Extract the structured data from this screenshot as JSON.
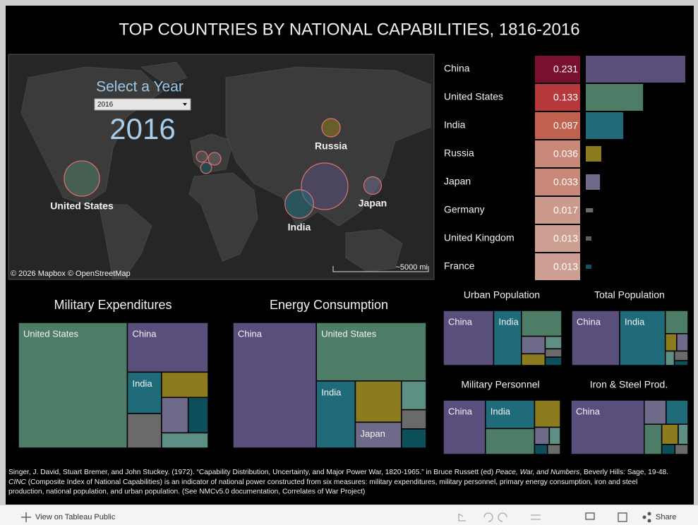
{
  "header": {
    "title": "TOP COUNTRIES BY NATIONAL CAPABILITIES, 1816-2016"
  },
  "map": {
    "prompt": "Select a Year",
    "dropdown": "2016",
    "year": "2016",
    "labels": [
      "United States",
      "Russia",
      "India",
      "Japan"
    ],
    "attribution": "© 2026 Mapbox  © OpenStreetMap",
    "scale": "~5000 mi"
  },
  "chart_data": [
    {
      "type": "bar",
      "categories": [
        "China",
        "United States",
        "India",
        "Russia",
        "Japan",
        "Germany",
        "United Kingdom",
        "France"
      ],
      "values": [
        0.231,
        0.133,
        0.087,
        0.036,
        0.033,
        0.017,
        0.013,
        0.013
      ],
      "colors": [
        "#5a4f7c",
        "#4e7d67",
        "#1f6b7a",
        "#8c7b1f",
        "#6e6a8a",
        "#6a6a6a",
        "#5f5f5f",
        "#0d5560"
      ],
      "cell_colors": [
        "#7a1030",
        "#b5393b",
        "#c06150",
        "#c98877",
        "#c98877",
        "#cc9a8c",
        "#cc9f92",
        "#cc9f92"
      ]
    },
    {
      "type": "treemap",
      "title": "Military Expenditures",
      "labels": [
        "United States",
        "China",
        "India",
        null,
        null,
        null,
        null,
        null
      ],
      "values": [
        58,
        17,
        6,
        5,
        5,
        4,
        3,
        3
      ],
      "colors": [
        "#4e7d67",
        "#5a4f7c",
        "#1f6b7a",
        "#6a6a6a",
        "#8c7b1f",
        "#6e6a8a",
        "#0d4f5a",
        "#5e8f84"
      ]
    },
    {
      "type": "treemap",
      "title": "Energy Consumption",
      "labels": [
        "China",
        "United States",
        "India",
        null,
        "Japan",
        null,
        null,
        null
      ],
      "values": [
        44,
        27,
        11,
        8,
        5,
        3,
        2,
        2
      ],
      "colors": [
        "#5a4f7c",
        "#4e7d67",
        "#1f6b7a",
        "#8c7b1f",
        "#6e6a8a",
        "#5e8f84",
        "#6a6a6a",
        "#0d4f5a"
      ]
    },
    {
      "type": "treemap",
      "title": "Urban Population",
      "labels": [
        "China",
        "India",
        null,
        null,
        null,
        null,
        null,
        null
      ],
      "values": [
        40,
        22,
        15,
        6,
        4,
        3,
        2,
        2
      ],
      "colors": [
        "#5a4f7c",
        "#1f6b7a",
        "#4e7d67",
        "#6e6a8a",
        "#8c7b1f",
        "#5e8f84",
        "#6a6a6a",
        "#0d4f5a"
      ]
    },
    {
      "type": "treemap",
      "title": "Total Population",
      "labels": [
        "China",
        "India",
        null,
        null,
        null,
        null,
        null,
        null
      ],
      "values": [
        40,
        38,
        8,
        3,
        3,
        2,
        2,
        1
      ],
      "colors": [
        "#5a4f7c",
        "#1f6b7a",
        "#4e7d67",
        "#8c7b1f",
        "#6e6a8a",
        "#5e8f84",
        "#6a6a6a",
        "#0d4f5a"
      ]
    },
    {
      "type": "treemap",
      "title": "Military Personnel",
      "labels": [
        "China",
        "India",
        null,
        null,
        null,
        null,
        null,
        null
      ],
      "values": [
        36,
        22,
        20,
        11,
        4,
        3,
        2,
        2
      ],
      "colors": [
        "#5a4f7c",
        "#1f6b7a",
        "#4e7d67",
        "#8c7b1f",
        "#6e6a8a",
        "#5e8f84",
        "#0d4f5a",
        "#6a6a6a"
      ]
    },
    {
      "type": "treemap",
      "title": "Iron & Steel Prod.",
      "labels": [
        "China",
        null,
        null,
        null,
        null,
        null,
        null,
        null
      ],
      "values": [
        60,
        8,
        8,
        8,
        5,
        3,
        2,
        2
      ],
      "colors": [
        "#5a4f7c",
        "#6e6a8a",
        "#1f6b7a",
        "#4e7d67",
        "#8c7b1f",
        "#5e8f84",
        "#0d4f5a",
        "#6a6a6a"
      ]
    }
  ],
  "footer": {
    "citation_start": "Singer, J. David, Stuart Bremer, and John Stuckey. (1972). “Capability Distribution, Uncertainty, and Major Power War, 1820-1965.” in Bruce Russett (ed) ",
    "citation_book": "Peace, War, and Numbers",
    "citation_end": ", Beverly Hills: Sage, 19-48.",
    "cinc": "CINC",
    "note_line1": " (Composite Index of National Capabilities) is an indicator of national power constructed from six measures: military expenditures, military personnel, primary energy consumption, iron and steel",
    "note_line2": "production, national population, and urban population. (See NMCv5.0 documentation, Correlates of War Project)"
  },
  "toolbar": {
    "view": "View on Tableau Public",
    "share": "Share"
  }
}
